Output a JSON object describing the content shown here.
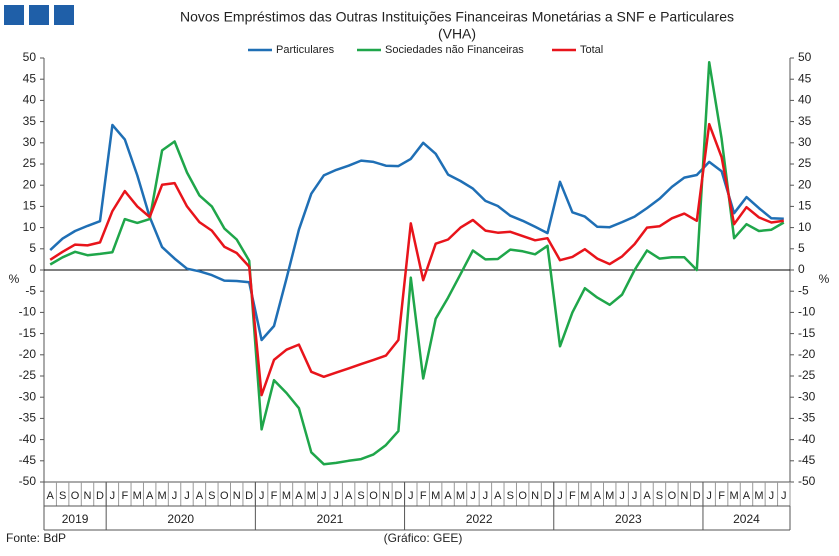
{
  "chart_data": {
    "type": "line",
    "title": "Novos Empréstimos das Outras Instituições Financeiras Monetárias a SNF e Particulares",
    "subtitle": "(VHA)",
    "categories": [
      "A",
      "S",
      "O",
      "N",
      "D",
      "J",
      "F",
      "M",
      "A",
      "M",
      "J",
      "J",
      "A",
      "S",
      "O",
      "N",
      "D",
      "J",
      "F",
      "M",
      "A",
      "M",
      "J",
      "J",
      "A",
      "S",
      "O",
      "N",
      "D",
      "J",
      "F",
      "M",
      "A",
      "M",
      "J",
      "J",
      "A",
      "S",
      "O",
      "N",
      "D",
      "J",
      "F",
      "M",
      "A",
      "M",
      "J",
      "J",
      "A",
      "S",
      "O",
      "N",
      "D",
      "J",
      "F",
      "M",
      "A",
      "M",
      "J",
      "J"
    ],
    "years": [
      "2019",
      "2020",
      "2021",
      "2022",
      "2023",
      "2024"
    ],
    "series": [
      {
        "name": "Particulares",
        "color": "#1f6fb5",
        "values": [
          4.7,
          7.4,
          9.2,
          10.4,
          11.5,
          34.2,
          30.8,
          22.3,
          12.5,
          5.4,
          2.7,
          0.3,
          -0.3,
          -1.2,
          -2.5,
          -2.6,
          -2.9,
          -16.5,
          -13.2,
          -2,
          9.5,
          18,
          22.3,
          23.6,
          24.6,
          25.8,
          25.5,
          24.6,
          24.5,
          26.2,
          30,
          27.4,
          22.5,
          21,
          19.2,
          16.3,
          15.1,
          12.8,
          11.6,
          10.2,
          8.7,
          20.8,
          13.6,
          12.6,
          10.2,
          10.1,
          11.3,
          12.6,
          14.6,
          16.8,
          19.6,
          21.8,
          22.4,
          25.5,
          23.3,
          13.4,
          17.2,
          14.6,
          12.2,
          12.1
        ]
      },
      {
        "name": "Sociedades não Financeiras",
        "color": "#1fa64a",
        "values": [
          1.3,
          3,
          4.3,
          3.5,
          3.8,
          4.2,
          12,
          11.1,
          12,
          28.2,
          30.3,
          23,
          17.6,
          15,
          9.8,
          7.2,
          2.2,
          -37.6,
          -26,
          -29,
          -32.6,
          -43,
          -45.8,
          -45.5,
          -45,
          -44.6,
          -43.5,
          -41.3,
          -38,
          -1.8,
          -25.6,
          -11.5,
          -6.5,
          -1,
          4.6,
          2.5,
          2.6,
          4.8,
          4.4,
          3.7,
          5.7,
          -18,
          -10,
          -4.3,
          -6.5,
          -8.2,
          -5.8,
          0,
          4.6,
          2.7,
          3,
          3,
          0,
          49,
          31,
          7.5,
          10.8,
          9.2,
          9.5,
          11.2
        ]
      },
      {
        "name": "Total",
        "color": "#e8141b",
        "values": [
          2.4,
          4.3,
          6,
          5.8,
          6.5,
          13.9,
          18.6,
          15,
          12.5,
          20.1,
          20.5,
          15,
          11.3,
          9.3,
          5.5,
          4,
          0.8,
          -29.5,
          -21.2,
          -18.8,
          -17.6,
          -24,
          -25.2,
          -24.2,
          -23.2,
          -22.2,
          -21.2,
          -20.2,
          -16.5,
          11,
          -2.4,
          6.2,
          7.2,
          10,
          11.8,
          9.3,
          8.8,
          9,
          8,
          7,
          7.5,
          2.3,
          3.1,
          4.9,
          2.7,
          1.4,
          3.2,
          6.1,
          10,
          10.3,
          12.2,
          13.3,
          11.6,
          34.4,
          26.6,
          10.8,
          14.8,
          12.4,
          11.2,
          11.6
        ]
      }
    ],
    "ylabel": "%",
    "y2label": "%",
    "ylim": [
      -50,
      50
    ],
    "yticks": [
      -50,
      -45,
      -40,
      -35,
      -30,
      -25,
      -20,
      -15,
      -10,
      -5,
      0,
      5,
      10,
      15,
      20,
      25,
      30,
      35,
      40,
      45,
      50
    ],
    "y2lim": [
      -50,
      50
    ],
    "y2ticks": [
      -50,
      -45,
      -40,
      -35,
      -30,
      -25,
      -20,
      -15,
      -10,
      -5,
      0,
      5,
      10,
      15,
      20,
      25,
      30,
      35,
      40,
      45,
      50
    ],
    "legend": "top",
    "source": "Fonte: BdP",
    "credit": "(Gráfico: GEE)"
  }
}
